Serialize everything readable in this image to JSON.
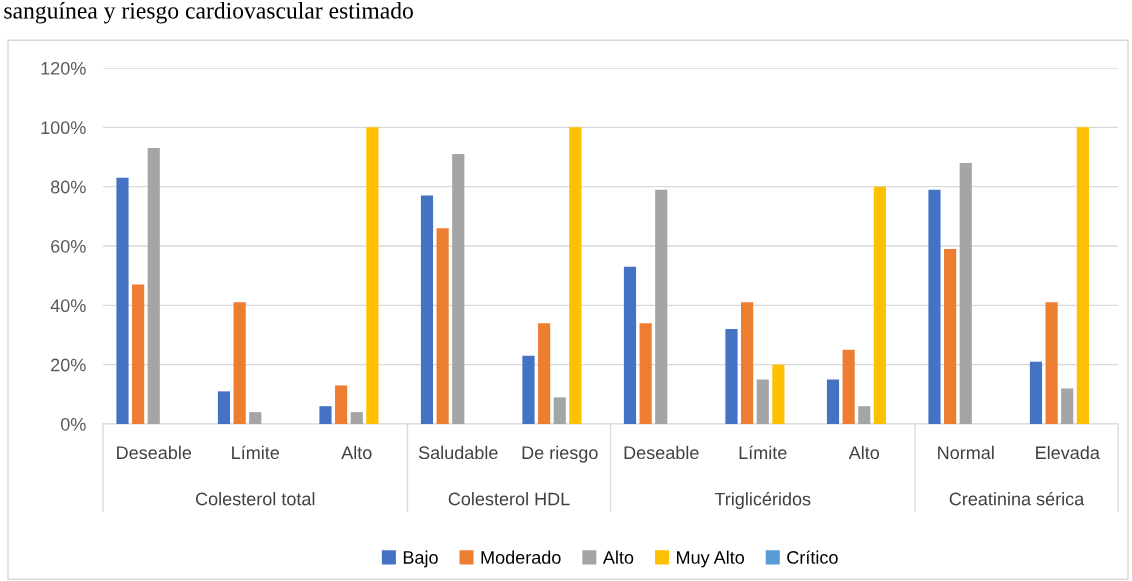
{
  "chart_data": {
    "type": "bar",
    "title": "sanguínea y riesgo cardiovascular estimado",
    "categories": [
      "Deseable",
      "Límite",
      "Alto",
      "Saludable",
      "De riesgo",
      "Deseable",
      "Límite",
      "Alto",
      "Normal",
      "Elevada"
    ],
    "annotations": [
      "Colesterol total",
      "Colesterol HDL",
      "Triglicéridos",
      "Creatinina sérica"
    ],
    "series": [
      {
        "name": "Bajo",
        "color": "#4472c4",
        "values": [
          83,
          11,
          6,
          77,
          23,
          53,
          32,
          15,
          79,
          21
        ]
      },
      {
        "name": "Moderado",
        "color": "#ed7d31",
        "values": [
          47,
          41,
          13,
          66,
          34,
          34,
          41,
          25,
          59,
          41
        ]
      },
      {
        "name": "Alto",
        "color": "#a5a5a5",
        "values": [
          93,
          4,
          4,
          91,
          9,
          79,
          15,
          6,
          88,
          12
        ]
      },
      {
        "name": "Muy Alto",
        "color": "#ffc000",
        "values": [
          0,
          0,
          100,
          0,
          100,
          0,
          20,
          80,
          0,
          100
        ]
      },
      {
        "name": "Crítico",
        "color": "#5b9bd5",
        "values": [
          0,
          0,
          0,
          0,
          0,
          0,
          0,
          0,
          0,
          0
        ]
      }
    ],
    "ylim": [
      0,
      120
    ],
    "yticks": [
      {
        "value": 0,
        "label": "0%"
      },
      {
        "value": 20,
        "label": "20%"
      },
      {
        "value": 40,
        "label": "40%"
      },
      {
        "value": 60,
        "label": "60%"
      },
      {
        "value": 80,
        "label": "80%"
      },
      {
        "value": 100,
        "label": "100%"
      },
      {
        "value": 120,
        "label": "120%"
      }
    ],
    "grid": "y",
    "legend": "bottom"
  }
}
